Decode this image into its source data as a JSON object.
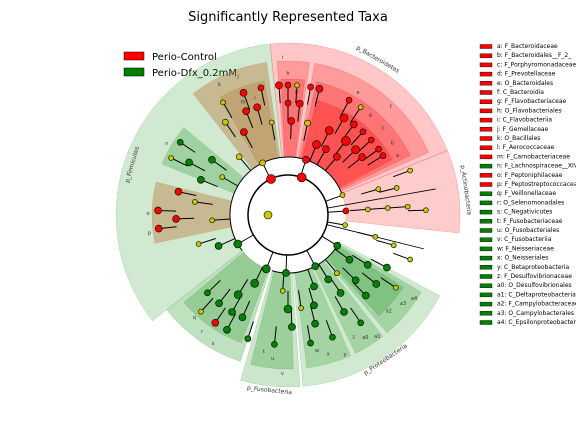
{
  "chart_data": {
    "type": "cladogram",
    "title": "Significantly Represented Taxa",
    "legend": [
      {
        "name": "Perio-Control",
        "color": "#ff0000"
      },
      {
        "name": "Perio-Dfx_0.2mM",
        "color": "#008000"
      }
    ],
    "colors": {
      "control": "#ff0000",
      "dfx": "#008000",
      "neutral": "#c8c800",
      "control_shade": "#ff0000",
      "dfx_shade": "#2e9a2e",
      "brown_shade": "#b5651d"
    },
    "taxa": [
      {
        "key": "a",
        "name": "F_Bacteroidaceae",
        "group": "control"
      },
      {
        "key": "b",
        "name": "F_Bacteroidales__F_2_",
        "group": "control"
      },
      {
        "key": "c",
        "name": "F_Porphyromonadaceae",
        "group": "control"
      },
      {
        "key": "d",
        "name": "F_Prevotellaceae",
        "group": "control"
      },
      {
        "key": "e",
        "name": "O_Bacteroidales",
        "group": "control"
      },
      {
        "key": "f",
        "name": "C_Bacteroidia",
        "group": "control"
      },
      {
        "key": "g",
        "name": "F_Flavobacteriaceae",
        "group": "control"
      },
      {
        "key": "h",
        "name": "O_Flavobacteriales",
        "group": "control"
      },
      {
        "key": "i",
        "name": "C_Flavobacteriia",
        "group": "control"
      },
      {
        "key": "j",
        "name": "F_Gemellaceae",
        "group": "control"
      },
      {
        "key": "k",
        "name": "O_Bacillales",
        "group": "control"
      },
      {
        "key": "l",
        "name": "F_Aerococcaceae",
        "group": "control"
      },
      {
        "key": "m",
        "name": "F_Carnobacteriaceae",
        "group": "control"
      },
      {
        "key": "n",
        "name": "F_Lachnospiraceae__XIV",
        "group": "dfx"
      },
      {
        "key": "o",
        "name": "F_Peptoniphilaceae",
        "group": "control"
      },
      {
        "key": "p",
        "name": "F_Peptostreptococcaceae",
        "group": "control"
      },
      {
        "key": "q",
        "name": "F_Veillonellaceae",
        "group": "dfx"
      },
      {
        "key": "r",
        "name": "O_Selenomonadales",
        "group": "dfx"
      },
      {
        "key": "s",
        "name": "C_Negativicutes",
        "group": "dfx"
      },
      {
        "key": "t",
        "name": "F_Fusobacteriaceae",
        "group": "dfx"
      },
      {
        "key": "u",
        "name": "O_Fusobacteriales",
        "group": "dfx"
      },
      {
        "key": "v",
        "name": "C_Fusobacteriia",
        "group": "dfx"
      },
      {
        "key": "w",
        "name": "F_Neisseriaceae",
        "group": "dfx"
      },
      {
        "key": "x",
        "name": "O_Neisseriales",
        "group": "dfx"
      },
      {
        "key": "y",
        "name": "C_Betaproteobacteria",
        "group": "dfx"
      },
      {
        "key": "z",
        "name": "F_Desulfovibrionaceae",
        "group": "dfx"
      },
      {
        "key": "a0",
        "name": "O_Desulfovibrionales",
        "group": "dfx"
      },
      {
        "key": "a1",
        "name": "C_Deltaproteobacteria",
        "group": "dfx"
      },
      {
        "key": "a2",
        "name": "F_Campylobacteraceae",
        "group": "dfx"
      },
      {
        "key": "a3",
        "name": "O_Campylobacterales",
        "group": "dfx"
      },
      {
        "key": "a4",
        "name": "C_Epsilonproteobacteria",
        "group": "dfx"
      }
    ],
    "phylum_labels": [
      {
        "text": "p_Bacteroidetes"
      },
      {
        "text": "p_Actinobacteria"
      },
      {
        "text": "p_Firmicutes"
      },
      {
        "text": "p_Fusobacteria"
      },
      {
        "text": "p_Proteobacteria"
      }
    ]
  }
}
